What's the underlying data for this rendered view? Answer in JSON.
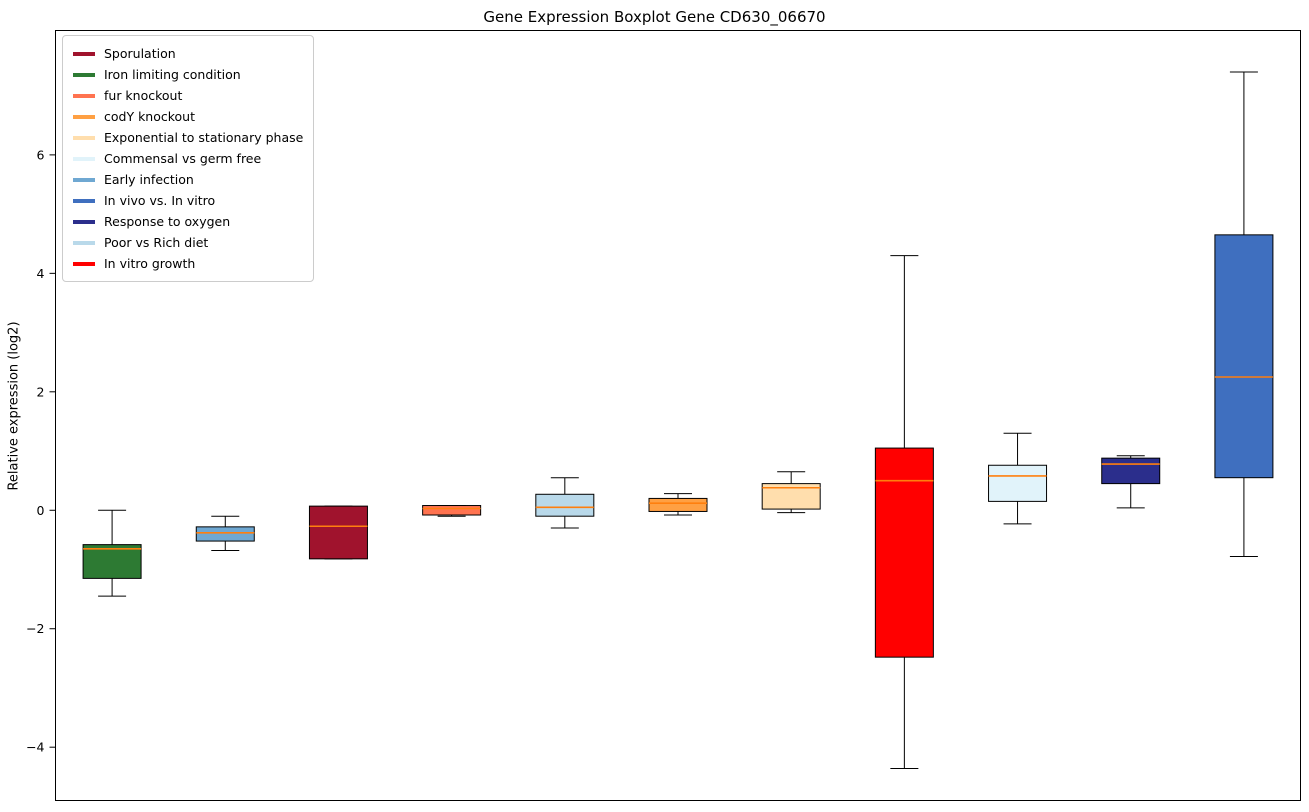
{
  "figure": {
    "title": "Gene Expression Boxplot Gene CD630_06670",
    "ylabel": "Relative expression (log2)"
  },
  "chart_data": {
    "type": "boxplot",
    "title": "Gene Expression Boxplot Gene CD630_06670",
    "xlabel": "",
    "ylabel": "Relative expression (log2)",
    "ylim": [
      -4.9,
      8.1
    ],
    "yticks": [
      -4,
      -2,
      0,
      2,
      4,
      6
    ],
    "grid": false,
    "legend_position": "upper left",
    "median_color": "#ff7f0e",
    "box_edge_color": "#000000",
    "legend": [
      {
        "label": "Sporulation",
        "color": "#a0132d"
      },
      {
        "label": "Iron limiting condition",
        "color": "#2d7a33"
      },
      {
        "label": "fur knockout",
        "color": "#ff7350"
      },
      {
        "label": "codY knockout",
        "color": "#ffa043"
      },
      {
        "label": "Exponential to stationary phase",
        "color": "#ffdead"
      },
      {
        "label": "Commensal vs germ free",
        "color": "#e1f3fa"
      },
      {
        "label": "Early infection",
        "color": "#6fa8d2"
      },
      {
        "label": "In vivo vs. In vitro",
        "color": "#3f6fbf"
      },
      {
        "label": "Response to oxygen",
        "color": "#2b2e8c"
      },
      {
        "label": "Poor vs Rich diet",
        "color": "#b9d9ea"
      },
      {
        "label": "In vitro growth",
        "color": "#ff0000"
      }
    ],
    "boxes": [
      {
        "condition": "Iron limiting condition",
        "color": "#2d7a33",
        "whisker_low": -1.45,
        "q1": -1.15,
        "median": -0.65,
        "q3": -0.58,
        "whisker_high": 0.0
      },
      {
        "condition": "Early infection",
        "color": "#6fa8d2",
        "whisker_low": -0.68,
        "q1": -0.52,
        "median": -0.38,
        "q3": -0.28,
        "whisker_high": -0.1
      },
      {
        "condition": "Sporulation",
        "color": "#a0132d",
        "whisker_low": -0.82,
        "q1": -0.82,
        "median": -0.27,
        "q3": 0.07,
        "whisker_high": 0.07
      },
      {
        "condition": "fur knockout",
        "color": "#ff7350",
        "whisker_low": -0.1,
        "q1": -0.08,
        "median": 0.03,
        "q3": 0.08,
        "whisker_high": 0.08
      },
      {
        "condition": "Poor vs Rich diet",
        "color": "#b9d9ea",
        "whisker_low": -0.3,
        "q1": -0.1,
        "median": 0.05,
        "q3": 0.27,
        "whisker_high": 0.55
      },
      {
        "condition": "codY knockout",
        "color": "#ffa043",
        "whisker_low": -0.08,
        "q1": -0.02,
        "median": 0.12,
        "q3": 0.2,
        "whisker_high": 0.28
      },
      {
        "condition": "Exponential to stationary phase",
        "color": "#ffdead",
        "whisker_low": -0.04,
        "q1": 0.02,
        "median": 0.38,
        "q3": 0.45,
        "whisker_high": 0.65
      },
      {
        "condition": "In vitro growth",
        "color": "#ff0000",
        "whisker_low": -4.36,
        "q1": -2.48,
        "median": 0.5,
        "q3": 1.05,
        "whisker_high": 4.3
      },
      {
        "condition": "Commensal vs germ free",
        "color": "#e1f3fa",
        "whisker_low": -0.23,
        "q1": 0.15,
        "median": 0.58,
        "q3": 0.76,
        "whisker_high": 1.3
      },
      {
        "condition": "Response to oxygen",
        "color": "#2b2e8c",
        "whisker_low": 0.04,
        "q1": 0.45,
        "median": 0.78,
        "q3": 0.88,
        "whisker_high": 0.92
      },
      {
        "condition": "In vivo vs. In vitro",
        "color": "#3f6fbf",
        "whisker_low": -0.78,
        "q1": 0.55,
        "median": 2.25,
        "q3": 4.65,
        "whisker_high": 7.4
      }
    ]
  }
}
